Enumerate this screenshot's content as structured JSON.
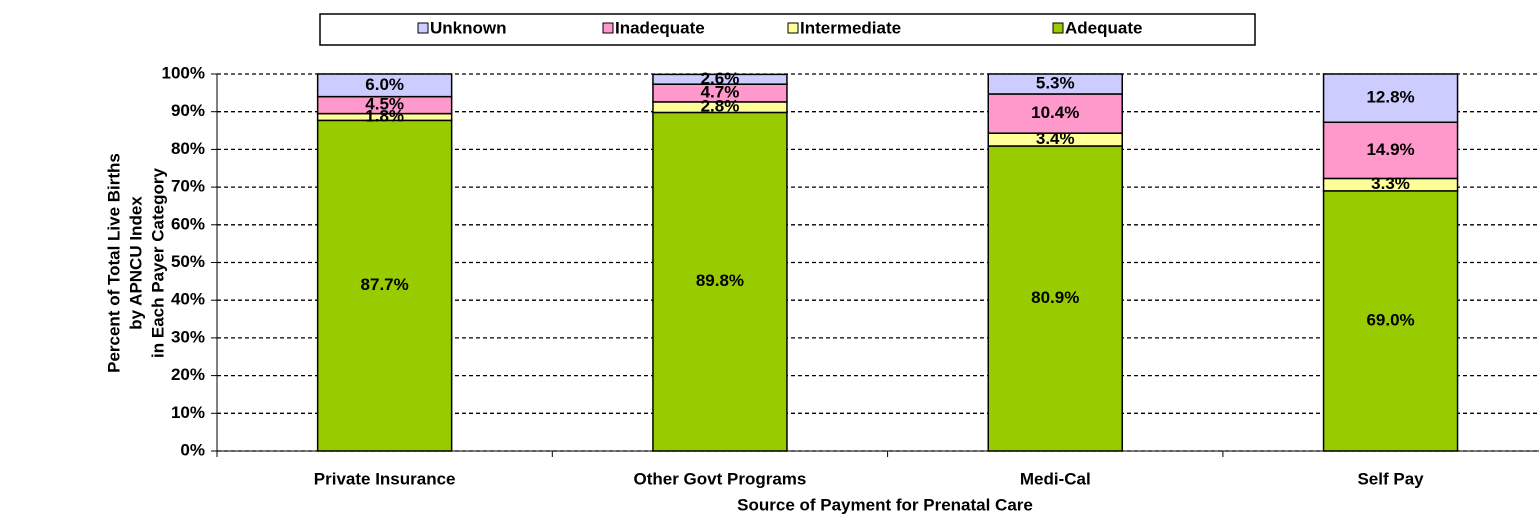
{
  "chart_data": {
    "type": "stacked_bar",
    "categories": [
      "Private Insurance",
      "Other Govt Programs",
      "Medi-Cal",
      "Self Pay"
    ],
    "series": [
      {
        "name": "Adequate",
        "color": "#99cc00",
        "values": [
          87.7,
          89.8,
          80.9,
          69.0
        ],
        "value_labels": [
          "87.7%",
          "89.8%",
          "80.9%",
          "69.0%"
        ]
      },
      {
        "name": "Intermediate",
        "color": "#ffff99",
        "values": [
          1.8,
          2.8,
          3.4,
          3.3
        ],
        "value_labels": [
          "1.8%",
          "2.8%",
          "3.4%",
          "3.3%"
        ]
      },
      {
        "name": "Inadequate",
        "color": "#ff99cc",
        "values": [
          4.5,
          4.7,
          10.4,
          14.9
        ],
        "value_labels": [
          "4.5%",
          "4.7%",
          "10.4%",
          "14.9%"
        ]
      },
      {
        "name": "Unknown",
        "color": "#ccccff",
        "values": [
          6.0,
          2.6,
          5.3,
          12.8
        ],
        "value_labels": [
          "6.0%",
          "2.6%",
          "5.3%",
          "12.8%"
        ]
      }
    ],
    "ylim": [
      0,
      100
    ],
    "yticks": [
      {
        "value": 0,
        "label": "0%"
      },
      {
        "value": 10,
        "label": "10%"
      },
      {
        "value": 20,
        "label": "20%"
      },
      {
        "value": 30,
        "label": "30%"
      },
      {
        "value": 40,
        "label": "40%"
      },
      {
        "value": 50,
        "label": "50%"
      },
      {
        "value": 60,
        "label": "60%"
      },
      {
        "value": 70,
        "label": "70%"
      },
      {
        "value": 80,
        "label": "80%"
      },
      {
        "value": 90,
        "label": "90%"
      },
      {
        "value": 100,
        "label": "100%"
      }
    ],
    "grid": true,
    "legend": "top",
    "y_label": [
      "Percent of Total Live Births",
      "by APNCU Index",
      "in Each Payer Category"
    ],
    "x_label": "Source of Payment for Prenatal Care"
  }
}
